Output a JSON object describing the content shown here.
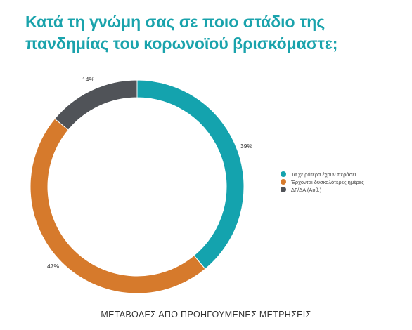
{
  "title": "Κατά τη γνώμη σας σε ποιο στάδιο της πανδημίας του κορωνοϊού βρισκόμαστε;",
  "footer": "ΜΕΤΑΒΟΛΕΣ ΑΠΟ ΠΡΟΗΓΟΥΜΕΝΕΣ ΜΕΤΡΗΣΕΙΣ",
  "chart_data": {
    "type": "pie",
    "variant": "donut",
    "categories": [
      "Τα χειρότερα έχουν περάσει",
      "Έρχονται δυσκολότερες ημέρες",
      "ΔΓ/ΔΑ (Αυθ.)"
    ],
    "values": [
      39,
      47,
      14
    ],
    "data_labels": [
      "39%",
      "47%",
      "14%"
    ],
    "colors": [
      "#14a3ae",
      "#d67a2c",
      "#505358"
    ],
    "legend_position": "right"
  }
}
